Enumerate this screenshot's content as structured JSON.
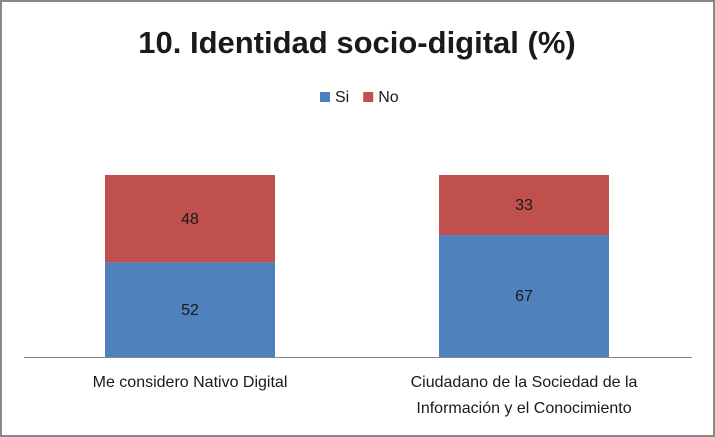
{
  "chart_data": {
    "type": "stacked-bar",
    "title": "10. Identidad socio-digital (%)",
    "categories": [
      "Me considero Nativo Digital",
      "Ciudadano de la Sociedad de la Información y el Conocimiento"
    ],
    "series": [
      {
        "name": "Si",
        "color": "#4f81bd",
        "values": [
          52,
          67
        ]
      },
      {
        "name": "No",
        "color": "#c0504d",
        "values": [
          48,
          33
        ]
      }
    ],
    "legend": "top"
  }
}
